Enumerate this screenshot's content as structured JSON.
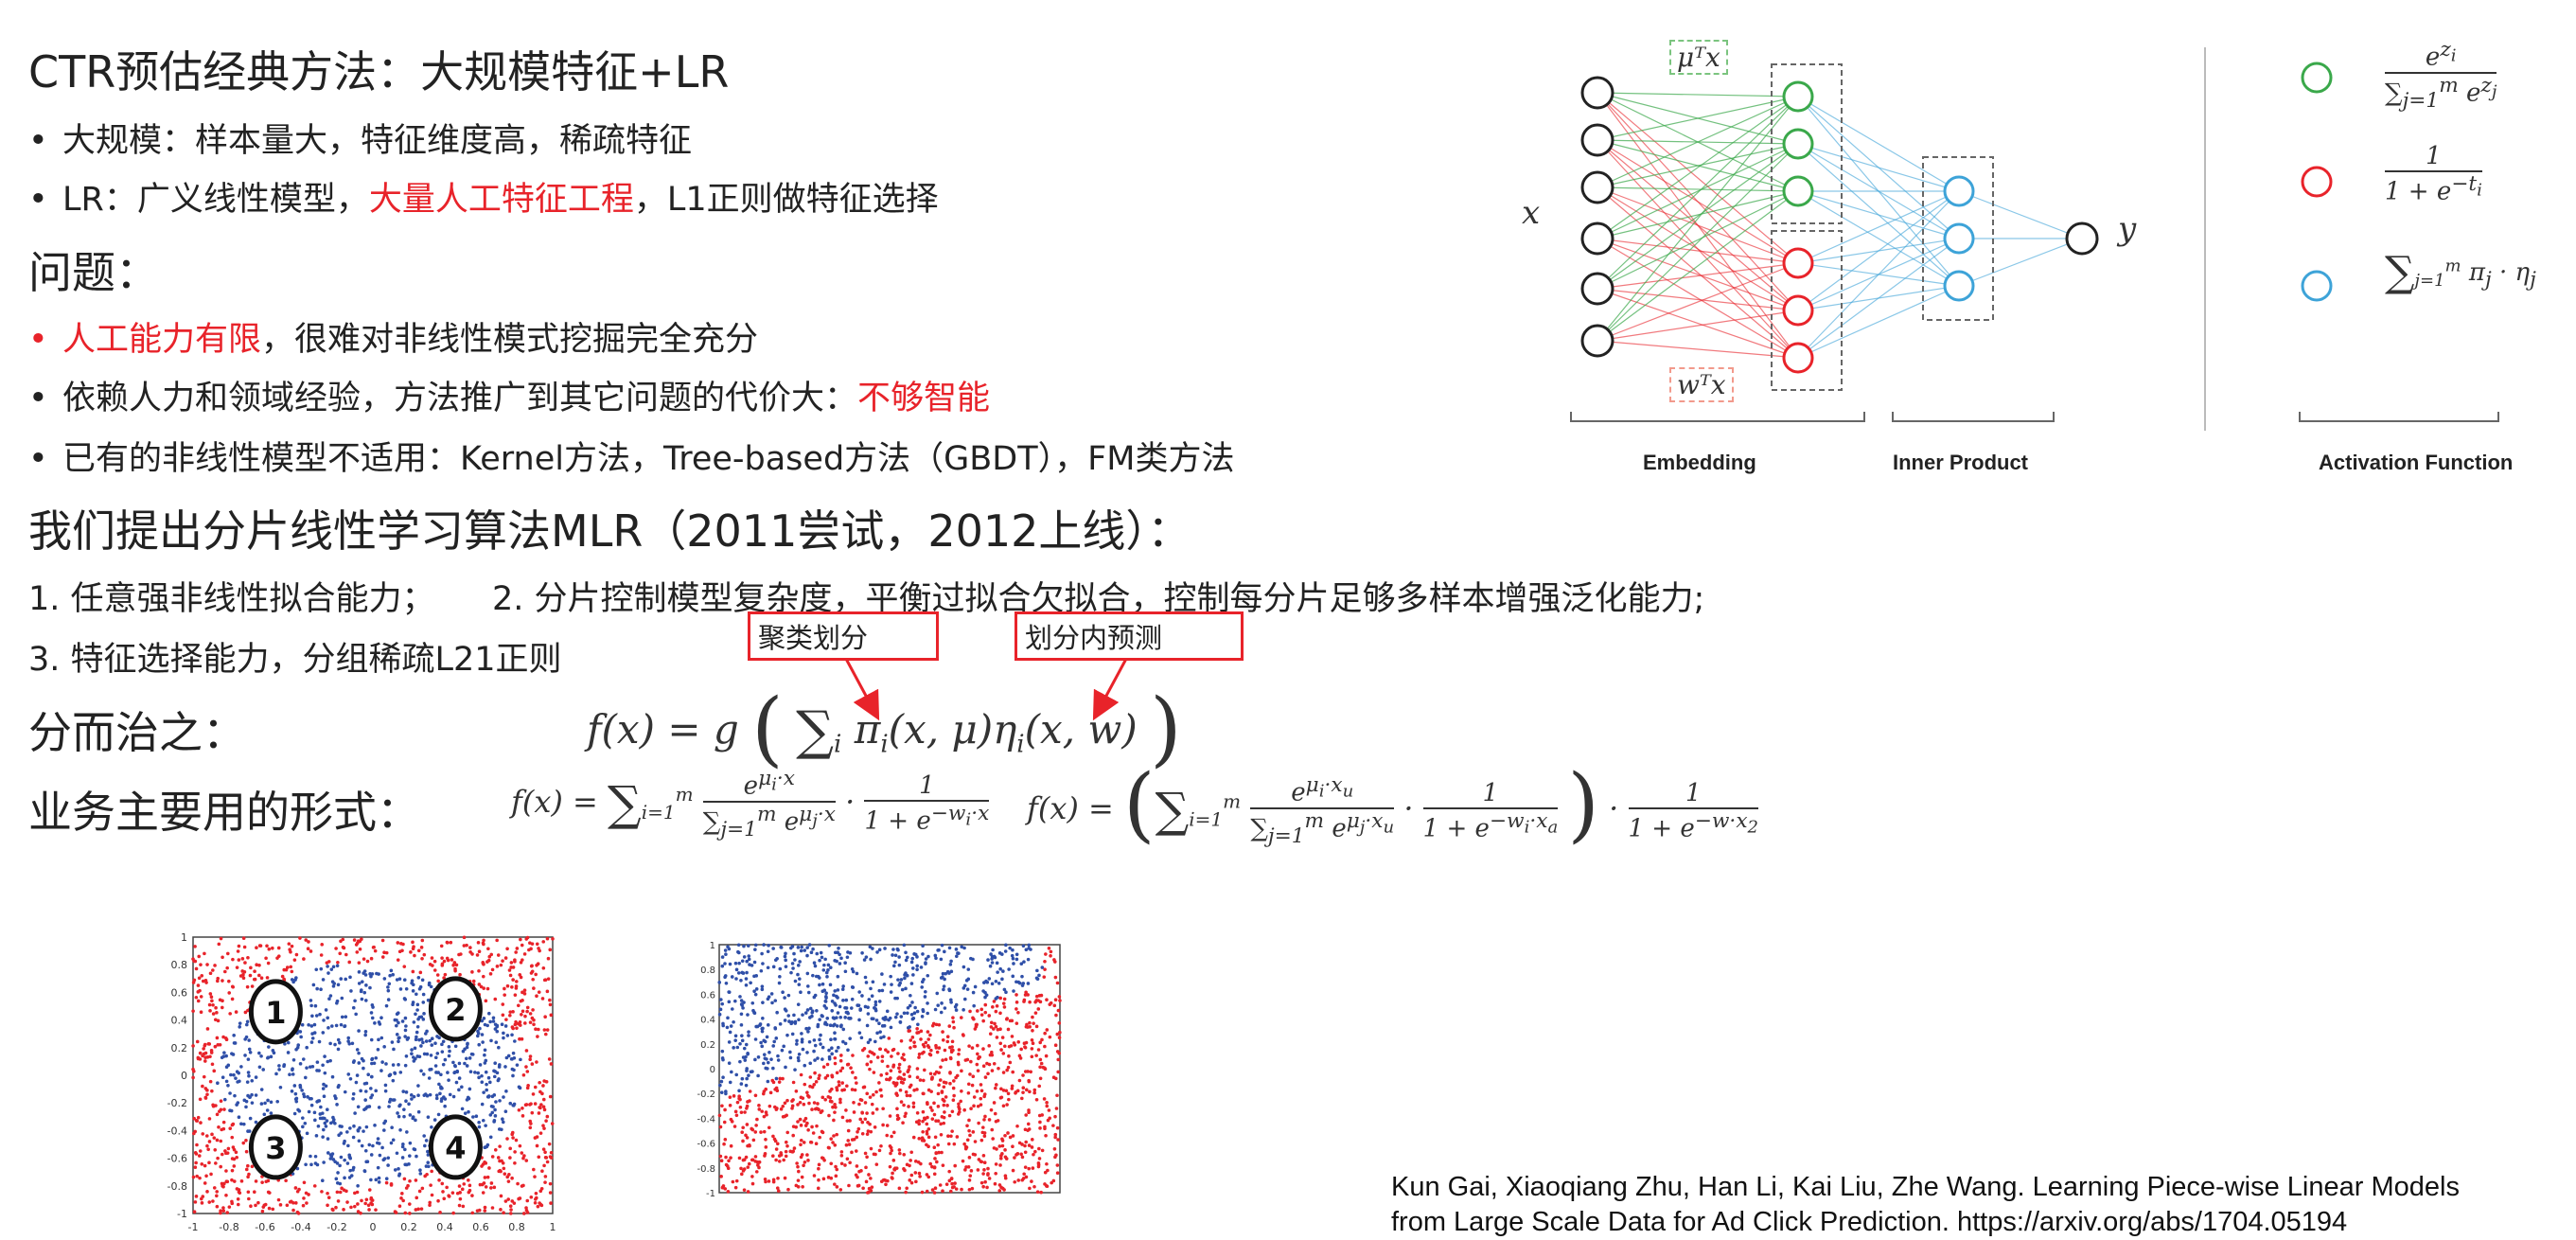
{
  "title": "CTR预估经典方法：大规模特征+LR",
  "bullets_top": [
    {
      "text": "大规模：样本量大，特征维度高，稀疏特征"
    },
    {
      "prefix": "LR：广义线性模型，",
      "highlight": "大量人工特征工程",
      "suffix": "，L1正则做特征选择"
    }
  ],
  "problem_heading": "问题：",
  "problem_bullets": [
    {
      "highlight": "人工能力有限",
      "suffix": "，很难对非线性模式挖掘完全充分"
    },
    {
      "prefix": "依赖人力和领域经验，方法推广到其它问题的代价大：",
      "highlight": "不够智能"
    },
    {
      "text": "已有的非线性模型不适用：Kernel方法，Tree-based方法（GBDT），FM类方法"
    }
  ],
  "proposal_heading": "我们提出分片线性学习算法MLR（2011尝试，2012上线）：",
  "proposal_points": {
    "p1": "1. 任意强非线性拟合能力；",
    "p2": "2. 分片控制模型复杂度，平衡过拟合欠拟合，控制每分片足够多样本增强泛化能力;",
    "p3": "3. 特征选择能力，分组稀疏L21正则"
  },
  "callouts": {
    "cluster": "聚类划分",
    "predict": "划分内预测"
  },
  "divide_heading": "分而治之：",
  "business_heading": "业务主要用的形式：",
  "nn_labels": {
    "embedding": "Embedding",
    "inner_product": "Inner Product",
    "activation": "Activation Function",
    "x": "x",
    "y": "y",
    "mu": "μᵀx",
    "w": "wᵀx"
  },
  "plot1_markers": [
    "1",
    "2",
    "3",
    "4"
  ],
  "plot1_ticks": [
    "1",
    "0.8",
    "0.6",
    "0.4",
    "0.2",
    "0",
    "-0.2",
    "-0.4",
    "-0.6",
    "-0.8",
    "-1"
  ],
  "plot1_xticks": [
    "-1",
    "-0.8",
    "-0.6",
    "-0.4",
    "-0.2",
    "0",
    "0.2",
    "0.4",
    "0.6",
    "0.8",
    "1"
  ],
  "colors": {
    "red": "#e8232a",
    "blue": "#2f4fa8",
    "green": "#3aa84a",
    "nn_blue": "#3da3d8"
  },
  "citation": {
    "line1": "Kun Gai, Xiaoqiang Zhu, Han Li, Kai Liu, Zhe Wang. Learning Piece-wise Linear Models",
    "line2": "from Large Scale Data for Ad Click Prediction. https://arxiv.org/abs/1704.05194"
  }
}
